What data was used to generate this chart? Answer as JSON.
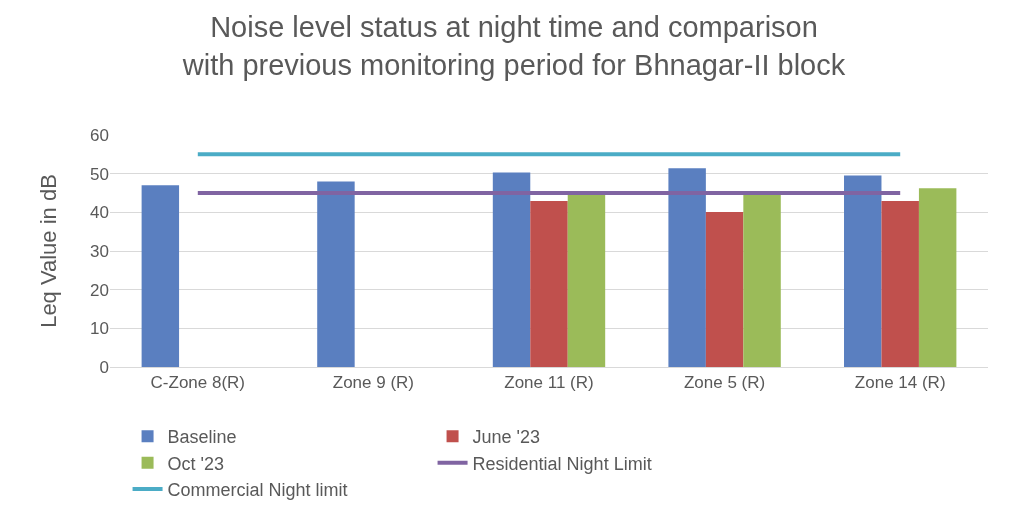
{
  "chart_data": {
    "type": "bar",
    "title": "Noise level status at night time and comparison with previous monitoring period for Bhnagar-II block",
    "ylabel": "Leq Value in dB",
    "categories": [
      "C-Zone 8(R)",
      "Zone 9 (R)",
      "Zone 11 (R)",
      "Zone 5 (R)",
      "Zone 14 (R)"
    ],
    "series": [
      {
        "name": "Baseline",
        "color": "#5a7fc0",
        "values": [
          47,
          48,
          50.3,
          51.4,
          49.5
        ]
      },
      {
        "name": "June '23",
        "color": "#c0504d",
        "values": [
          null,
          null,
          42.9,
          40.1,
          42.9
        ]
      },
      {
        "name": "Oct '23",
        "color": "#9bbb59",
        "values": [
          null,
          null,
          44.5,
          44.5,
          46.2
        ]
      },
      {
        "name": "Residential Night Limit",
        "type": "line",
        "color": "#8064a2",
        "values": [
          45,
          45,
          45,
          45,
          45
        ]
      },
      {
        "name": "Commercial Night limit",
        "type": "line",
        "color": "#4bacc6",
        "values": [
          55,
          55,
          55,
          55,
          55
        ]
      }
    ],
    "ylim": [
      0,
      60
    ],
    "yticks": [
      0,
      10,
      20,
      30,
      40,
      50,
      60
    ],
    "grid": "y",
    "legend": "bottom",
    "marker": "none",
    "line_style": "solid"
  }
}
